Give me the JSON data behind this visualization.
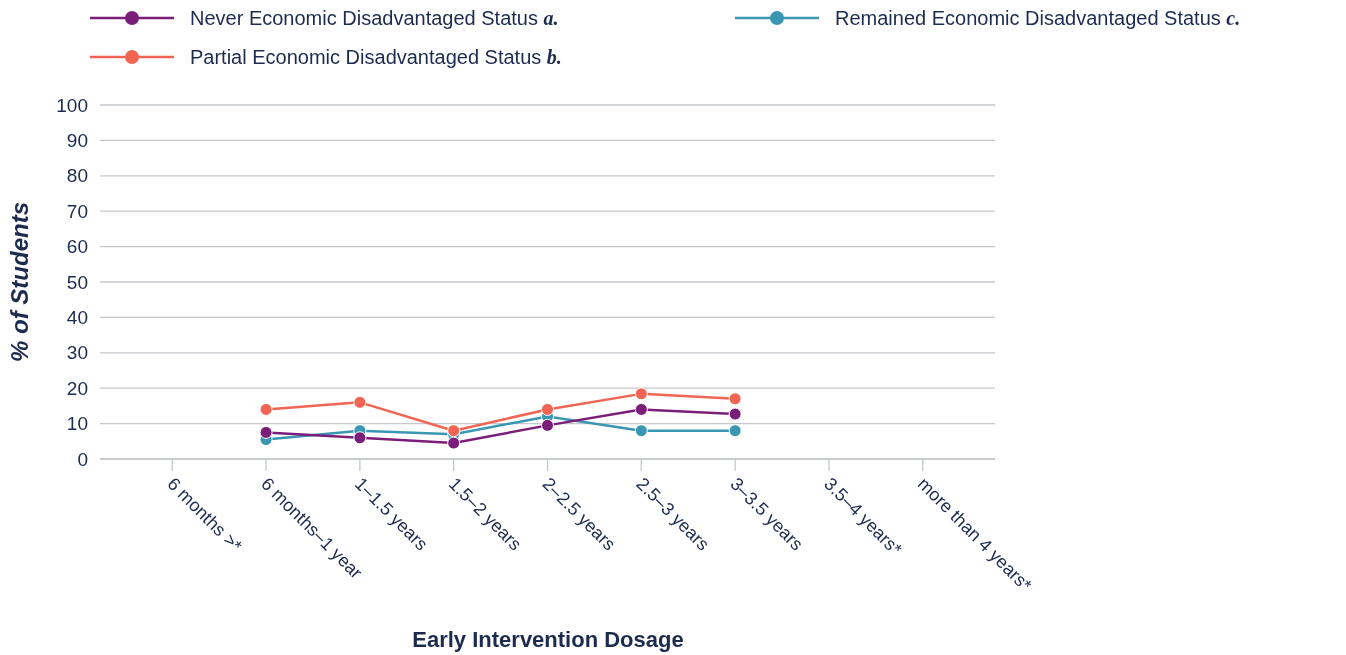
{
  "chart_data": {
    "type": "line",
    "xlabel": "Early Intervention Dosage",
    "ylabel": "% of Students",
    "categories": [
      "6 months >*",
      "6 months–1 year",
      "1–1.5 years",
      "1.5–2 years",
      "2–2.5 years",
      "2.5–3 years",
      "3–3.5 years",
      "3.5–4 years*",
      "more than 4 years*"
    ],
    "series": [
      {
        "name": "Never Economic Disadvantaged Status a.",
        "color": "#7b1e7a",
        "values": [
          null,
          7.5,
          6,
          4.5,
          9.5,
          14,
          12.7,
          null,
          null
        ]
      },
      {
        "name": "Partial Economic Disadvantaged Status b.",
        "color": "#f26552",
        "values": [
          null,
          14,
          16,
          8,
          14,
          18.4,
          17,
          null,
          null
        ]
      },
      {
        "name": "Remained Economic Disadvantaged Status c.",
        "color": "#3a97b3",
        "values": [
          null,
          5.5,
          8,
          7,
          12,
          8,
          8,
          null,
          null
        ]
      }
    ],
    "ylim": [
      0,
      100
    ],
    "yticks": [
      0,
      10,
      20,
      30,
      40,
      50,
      60,
      70,
      80,
      90,
      100
    ],
    "grid": "y",
    "legend": "top",
    "marker": "circle",
    "line_style": "solid"
  }
}
